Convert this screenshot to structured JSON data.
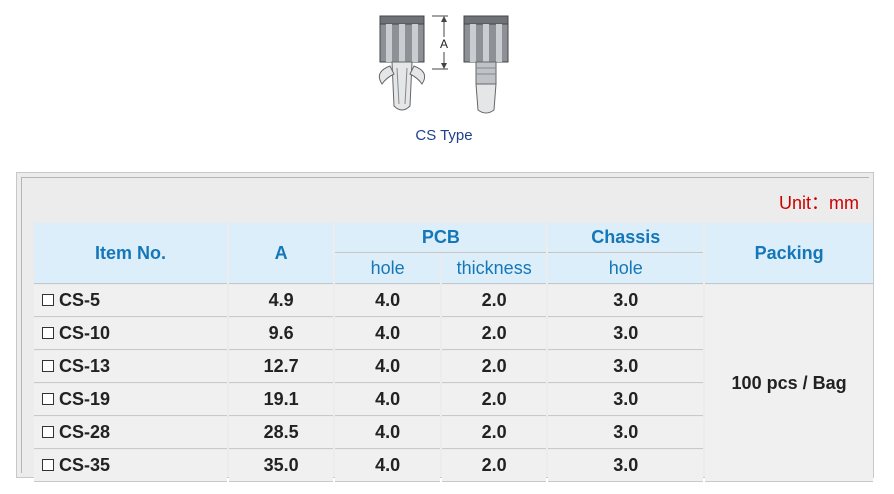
{
  "figure": {
    "dimension_label": "A",
    "caption": "CS Type"
  },
  "table": {
    "unit": "Unit：mm",
    "headers": {
      "item_no": "Item No.",
      "a": "A",
      "pcb": "PCB",
      "pcb_hole": "hole",
      "pcb_thickness": "thickness",
      "chassis": "Chassis",
      "chassis_hole": "hole",
      "packing": "Packing"
    },
    "rows": [
      {
        "item": "CS-5",
        "a": "4.9",
        "pcb_hole": "4.0",
        "pcb_thickness": "2.0",
        "chassis_hole": "3.0"
      },
      {
        "item": "CS-10",
        "a": "9.6",
        "pcb_hole": "4.0",
        "pcb_thickness": "2.0",
        "chassis_hole": "3.0"
      },
      {
        "item": "CS-13",
        "a": "12.7",
        "pcb_hole": "4.0",
        "pcb_thickness": "2.0",
        "chassis_hole": "3.0"
      },
      {
        "item": "CS-19",
        "a": "19.1",
        "pcb_hole": "4.0",
        "pcb_thickness": "2.0",
        "chassis_hole": "3.0"
      },
      {
        "item": "CS-28",
        "a": "28.5",
        "pcb_hole": "4.0",
        "pcb_thickness": "2.0",
        "chassis_hole": "3.0"
      },
      {
        "item": "CS-35",
        "a": "35.0",
        "pcb_hole": "4.0",
        "pcb_thickness": "2.0",
        "chassis_hole": "3.0"
      }
    ],
    "packing": "100 pcs / Bag"
  }
}
